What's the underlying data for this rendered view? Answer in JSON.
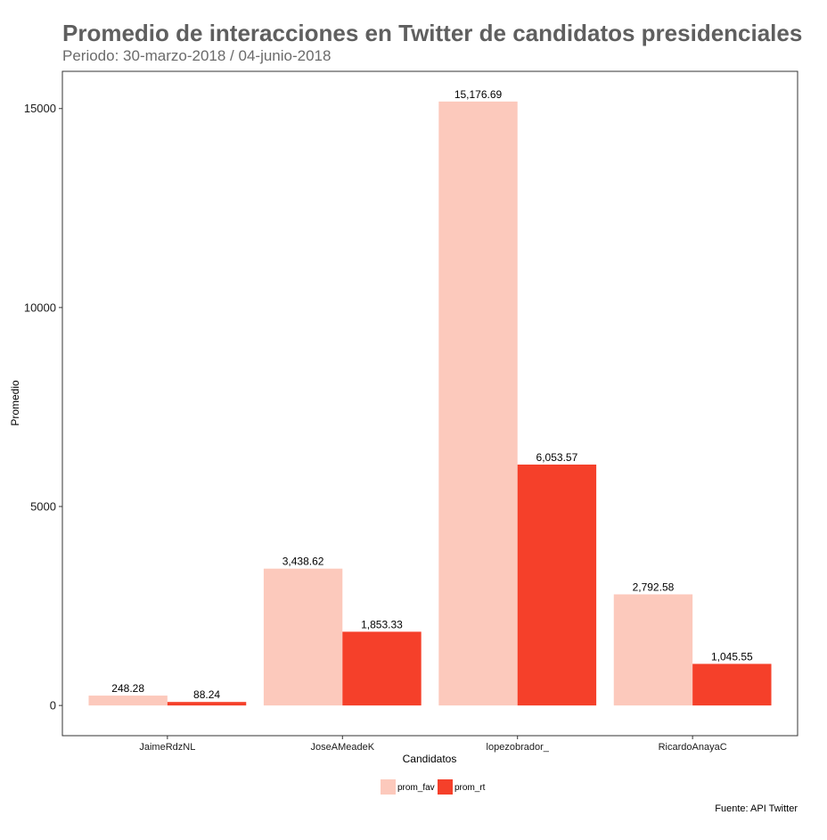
{
  "title": "Promedio de interacciones en Twitter de candidatos presidenciales",
  "subtitle": "Periodo: 30-marzo-2018 / 04-junio-2018",
  "caption": "Fuente: API Twitter",
  "chart_data": {
    "type": "bar",
    "title": "Promedio de interacciones en Twitter de candidatos presidenciales",
    "subtitle": "Periodo: 30-marzo-2018 / 04-junio-2018",
    "xlabel": "Candidatos",
    "ylabel": "Promedio",
    "categories": [
      "JaimeRdzNL",
      "JoseAMeadeK",
      "lopezobrador_",
      "RicardoAnayaC"
    ],
    "series": [
      {
        "name": "prom_fav",
        "color": "#fcc9bc",
        "values": [
          248.28,
          3438.62,
          15176.69,
          2792.58
        ],
        "labels": [
          "248.28",
          "3,438.62",
          "15,176.69",
          "2,792.58"
        ]
      },
      {
        "name": "prom_rt",
        "color": "#f5402a",
        "values": [
          88.24,
          1853.33,
          6053.57,
          1045.55
        ],
        "labels": [
          "88.24",
          "1,853.33",
          "6,053.57",
          "1,045.55"
        ]
      }
    ],
    "yticks": [
      0,
      5000,
      10000,
      15000
    ],
    "ytick_labels": [
      "0",
      "5000",
      "10000",
      "15000"
    ],
    "ylim": [
      -758.8,
      15935.5
    ],
    "grid": false,
    "legend_position": "bottom"
  }
}
